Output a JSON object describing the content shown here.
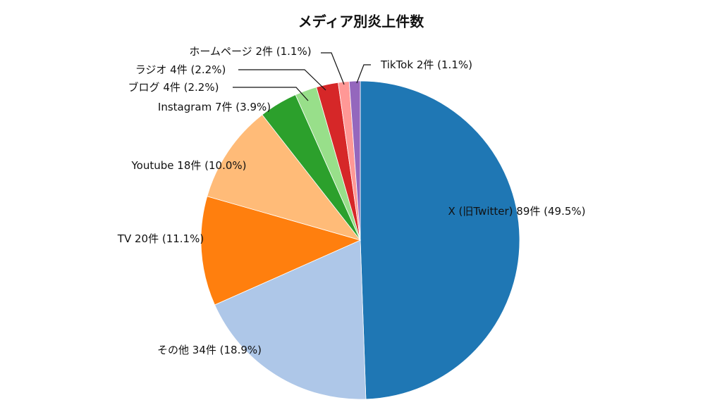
{
  "chart_data": {
    "type": "pie",
    "title": "メディア別炎上件数",
    "categories": [
      "X (旧Twitter)",
      "その他",
      "TV",
      "Youtube",
      "Instagram",
      "ブログ",
      "ラジオ",
      "ホームページ",
      "TikTok"
    ],
    "values": [
      89,
      34,
      20,
      18,
      7,
      4,
      4,
      2,
      2
    ],
    "value_labels": [
      "89件 (49.5%)",
      "34件 (18.9%)",
      "20件 (11.1%)",
      "18件 (10.0%)",
      "7件 (3.9%)",
      "4件 (2.2%)",
      "4件 (2.2%)",
      "2件 (1.1%)",
      "2件 (1.1%)"
    ],
    "colors": [
      "#1f77b4",
      "#aec7e8",
      "#ff7f0e",
      "#ffbb78",
      "#2ca02c",
      "#98df8a",
      "#d62728",
      "#ff9896",
      "#9467bd"
    ]
  }
}
